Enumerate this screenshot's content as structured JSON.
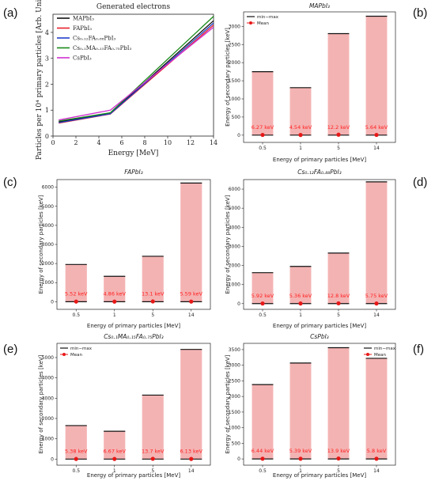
{
  "panel_letters": [
    "(a)",
    "(b)",
    "(c)",
    "(d)",
    "(e)",
    "(f)"
  ],
  "chart_data": [
    {
      "panel": "(a)",
      "type": "line",
      "title": "Generated electrons",
      "xlabel": "Energy [MeV]",
      "ylabel": "Particles per 10⁴ primary particles [Arb. Units]",
      "xlim": [
        0,
        14
      ],
      "ylim": [
        0,
        4.7
      ],
      "xticks": [
        "0",
        "2",
        "4",
        "6",
        "8",
        "10",
        "12",
        "14"
      ],
      "yticks": [
        "0",
        "1",
        "2",
        "3",
        "4"
      ],
      "legend_position": "top-left",
      "x": [
        0.5,
        5,
        14
      ],
      "series": [
        {
          "name": "MAPbI₃",
          "color": "#111111",
          "values": [
            0.55,
            0.88,
            4.45
          ]
        },
        {
          "name": "FAPbI₃",
          "color": "#e8202a",
          "values": [
            0.5,
            0.85,
            4.28
          ]
        },
        {
          "name": "Cs₀.₁₂FA₀.₈₈PbI₃",
          "color": "#2040c8",
          "values": [
            0.52,
            0.86,
            4.36
          ]
        },
        {
          "name": "Cs₀.₁MA₀.₁₅FA₀.₇₅PbI₃",
          "color": "#1a8a1a",
          "values": [
            0.58,
            0.9,
            4.62
          ]
        },
        {
          "name": "CsPbI₃",
          "color": "#d030d0",
          "values": [
            0.62,
            1.0,
            4.2
          ]
        }
      ]
    },
    {
      "panel": "(b)",
      "type": "bar",
      "title": "MAPbI₃",
      "xlabel": "Energy of primary particles [MeV]",
      "ylabel": "Energy of secondary particles [keV]",
      "categories": [
        "0.5",
        "1",
        "5",
        "14"
      ],
      "ylim": [
        -200,
        3400
      ],
      "yticks": [
        0,
        500,
        1000,
        1500,
        2000,
        2500,
        3000
      ],
      "max": [
        1750,
        1310,
        2800,
        3280
      ],
      "mean": [
        6.27,
        4.54,
        12.2,
        5.64
      ],
      "mean_labels": [
        "6.27 keV",
        "4.54 keV",
        "12.2 keV",
        "5.64 keV"
      ],
      "legend": [
        "min−max",
        "Mean"
      ],
      "legend_position": "top-left"
    },
    {
      "panel": "(c)",
      "type": "bar",
      "title": "FAPbI₃",
      "xlabel": "Energy of primary particles [MeV]",
      "ylabel": "Energy of secondary particles [keV]",
      "categories": [
        "0.5",
        "1",
        "5",
        "14"
      ],
      "ylim": [
        -400,
        6400
      ],
      "yticks": [
        0,
        1000,
        2000,
        3000,
        4000,
        5000,
        6000
      ],
      "max": [
        1950,
        1330,
        2380,
        6220
      ],
      "mean": [
        5.52,
        4.86,
        13.1,
        5.59
      ],
      "mean_labels": [
        "5.52 keV",
        "4.86 keV",
        "13.1 keV",
        "5.59 keV"
      ],
      "legend": [],
      "legend_position": "none"
    },
    {
      "panel": "(d)",
      "type": "bar",
      "title": "Cs₀.₁₂FA₀.₈₈PbI₃",
      "xlabel": "Energy of primary particles [MeV]",
      "ylabel": "Energy of secondary particles [keV]",
      "categories": [
        "0.5",
        "1",
        "5",
        "14"
      ],
      "ylim": [
        -300,
        6500
      ],
      "yticks": [
        0,
        1000,
        2000,
        3000,
        4000,
        5000,
        6000
      ],
      "max": [
        1620,
        1950,
        2650,
        6380
      ],
      "mean": [
        5.92,
        5.36,
        12.8,
        5.75
      ],
      "mean_labels": [
        "5.92 keV",
        "5.36 keV",
        "12.8 keV",
        "5.75 keV"
      ],
      "legend": [],
      "legend_position": "none"
    },
    {
      "panel": "(e)",
      "type": "bar",
      "title": "Cs₀.₁MA₀.₁₅FA₀.₇₅PbI₃",
      "xlabel": "Energy of primary particles [MeV]",
      "ylabel": "Energy of secondary particles [keV]",
      "categories": [
        "0.5",
        "1",
        "5",
        "14"
      ],
      "ylim": [
        -300,
        5700
      ],
      "yticks": [
        0,
        1000,
        2000,
        3000,
        4000,
        5000
      ],
      "max": [
        1650,
        1370,
        3150,
        5400
      ],
      "mean": [
        5.38,
        6.67,
        13.7,
        6.13
      ],
      "mean_labels": [
        "5.38 keV",
        "6.67 keV",
        "13.7 keV",
        "6.13 keV"
      ],
      "legend": [
        "min−max",
        "Mean"
      ],
      "legend_position": "top-left"
    },
    {
      "panel": "(f)",
      "type": "bar",
      "title": "CsPbI₃",
      "xlabel": "Energy of primary particles [MeV]",
      "ylabel": "Energy of secondary particles [keV]",
      "categories": [
        "0.5",
        "1",
        "5",
        "14"
      ],
      "ylim": [
        -200,
        3700
      ],
      "yticks": [
        0,
        500,
        1000,
        1500,
        2000,
        2500,
        3000,
        3500
      ],
      "max": [
        2380,
        3070,
        3560,
        3220
      ],
      "mean": [
        6.44,
        5.39,
        13.9,
        5.8
      ],
      "mean_labels": [
        "6.44 keV",
        "5.39 keV",
        "13.9 keV",
        "5.8 keV"
      ],
      "legend": [
        "min−max",
        "Mean"
      ],
      "legend_position": "top-right"
    }
  ]
}
